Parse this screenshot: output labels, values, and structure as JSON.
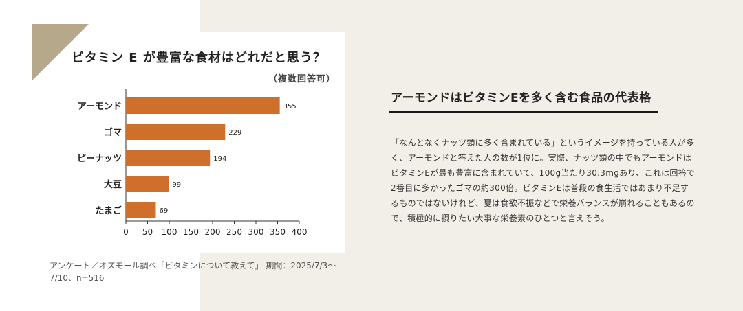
{
  "chart": {
    "title": "ビタミン E が豊富な食材はどれだと思う？",
    "subtitle": "（複数回答可）",
    "source": "アンケート／オズモール調べ「ビタミンについて教えて」 期間：2025/7/3〜7/10、n=516"
  },
  "colors": {
    "bar": "#cf6f2c",
    "corner_accent": "#b6a88a",
    "right_panel": "#f2efe8",
    "rule": "#1a1a1a"
  },
  "chart_data": {
    "type": "bar",
    "orientation": "horizontal",
    "categories": [
      "アーモンド",
      "ゴマ",
      "ピーナッツ",
      "大豆",
      "たまご"
    ],
    "values": [
      355,
      229,
      194,
      99,
      69
    ],
    "xlim": [
      0,
      400
    ],
    "xticks": [
      0,
      50,
      100,
      150,
      200,
      250,
      300,
      350,
      400
    ],
    "title": "ビタミン E が豊富な食材はどれだと思う？",
    "xlabel": "",
    "ylabel": "",
    "grid": false,
    "data_labels": true
  },
  "article": {
    "headline": "アーモンドはビタミンEを多く含む食品の代表格",
    "body": "「なんとなくナッツ類に多く含まれている」というイメージを持っている人が多く、アーモンドと答えた人の数が1位に。実際、ナッツ類の中でもアーモンドはビタミンEが最も豊富に含まれていて、100g当たり30.3mgあり、これは回答で2番目に多かったゴマの約300倍。ビタミンEは普段の食生活ではあまり不足するものではないけれど、夏は食欲不振などで栄養バランスが崩れることもあるので、積極的に摂りたい大事な栄養素のひとつと言えそう。"
  }
}
